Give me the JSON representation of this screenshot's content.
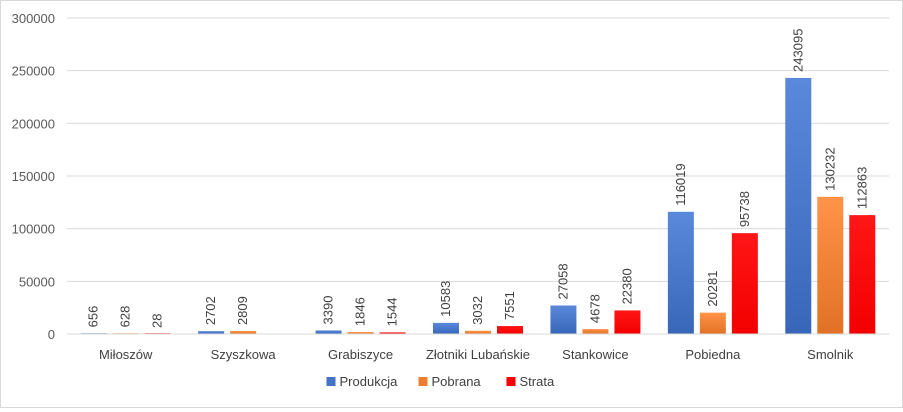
{
  "chart_data": {
    "type": "bar",
    "title": "",
    "xlabel": "",
    "ylabel": "",
    "ylim": [
      0,
      300000
    ],
    "y_ticks": [
      "0",
      "50000",
      "100000",
      "150000",
      "200000",
      "250000",
      "300000"
    ],
    "grid": true,
    "legend_position": "bottom",
    "categories": [
      "Miłoszów",
      "Szyszkowa",
      "Grabiszyce",
      "Złotniki Lubańskie",
      "Stankowice",
      "Pobiedna",
      "Smolnik"
    ],
    "series": [
      {
        "name": "Produkcja",
        "color": "#4472c4",
        "values": [
          656,
          2702,
          3390,
          10583,
          27058,
          116019,
          243095
        ],
        "labels": [
          "656",
          "2702",
          "3390",
          "10583",
          "27058",
          "116019",
          "243095"
        ]
      },
      {
        "name": "Pobrana",
        "color": "#ed7d31",
        "values": [
          628,
          2809,
          1846,
          3032,
          4678,
          20281,
          130232
        ],
        "labels": [
          "628",
          "2809",
          "1846",
          "3032",
          "4678",
          "20281",
          "130232"
        ]
      },
      {
        "name": "Strata",
        "color": "#ff0000",
        "values": [
          28,
          null,
          1544,
          7551,
          22380,
          95738,
          112863
        ],
        "labels": [
          "28",
          "",
          "1544",
          "7551",
          "22380",
          "95738",
          "112863"
        ]
      }
    ]
  }
}
